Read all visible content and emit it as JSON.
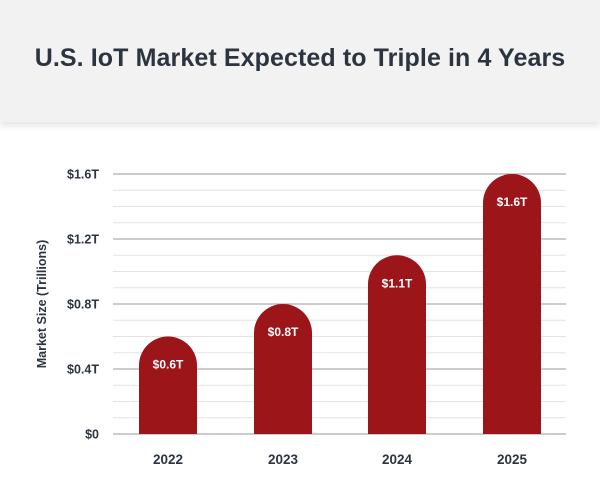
{
  "header": {
    "title": "U.S. IoT Market Expected to Triple in 4 Years"
  },
  "colors": {
    "bar": "#9b1519",
    "header_bg": "#f2f2f2",
    "text": "#2c3440",
    "grid": "#d9d9d9"
  },
  "chart_data": {
    "type": "bar",
    "title": "U.S. IoT Market Expected to Triple in 4 Years",
    "xlabel": "",
    "ylabel": "Market Size (Trillions)",
    "categories": [
      "2022",
      "2023",
      "2024",
      "2025"
    ],
    "values": [
      0.6,
      0.8,
      1.1,
      1.6
    ],
    "data_labels": [
      "$0.6T",
      "$0.8T",
      "$1.1T",
      "$1.6T"
    ],
    "ylim": [
      0,
      1.6
    ],
    "yticks": [
      0,
      0.4,
      0.8,
      1.2,
      1.6
    ],
    "ytick_labels": [
      "$0",
      "$0.4T",
      "$0.8T",
      "$1.2T",
      "$1.6T"
    ],
    "minor_grid_step": 0.1,
    "grid": true,
    "legend": "none"
  }
}
